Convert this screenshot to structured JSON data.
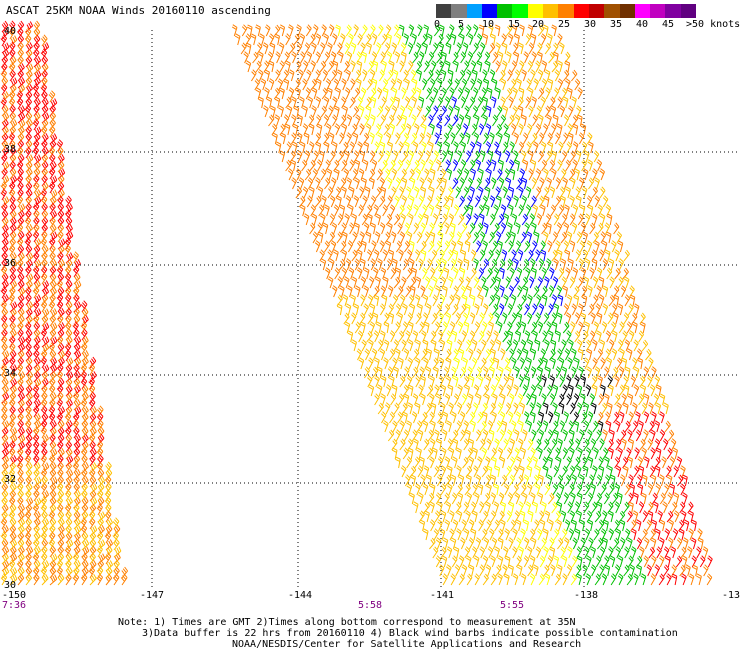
{
  "title": "ASCAT 25KM NOAA Winds 20160110 ascending",
  "legend": {
    "colors": [
      "#404040",
      "#7f7f7f",
      "#00a0ff",
      "#0000ff",
      "#00c000",
      "#00ff00",
      "#ffff00",
      "#ffc000",
      "#ff8000",
      "#ff0000",
      "#c00000",
      "#a05000",
      "#703000",
      "#ff00ff",
      "#c000c0",
      "#8000a0",
      "#600080"
    ],
    "labels": [
      "0",
      "5",
      "10",
      "15",
      "20",
      "25",
      "30",
      "35",
      "40",
      "45",
      ">50 knots"
    ]
  },
  "axes": {
    "lon_ticks": [
      "-150",
      "-147",
      "-144",
      "-141",
      "-138",
      "-13"
    ],
    "lat_ticks": [
      "40",
      "38",
      "36",
      "34",
      "32",
      "30"
    ]
  },
  "pass_times": [
    "7:36",
    "5:58",
    "5:55"
  ],
  "notes": [
    "Note: 1) Times are GMT 2)Times along bottom correspond to measurement at 35N",
    "3)Data buffer is 22 hrs from 20160110 4) Black wind barbs indicate possible contamination",
    "NOAA/NESDIS/Center for Satellite Applications and Research"
  ]
}
